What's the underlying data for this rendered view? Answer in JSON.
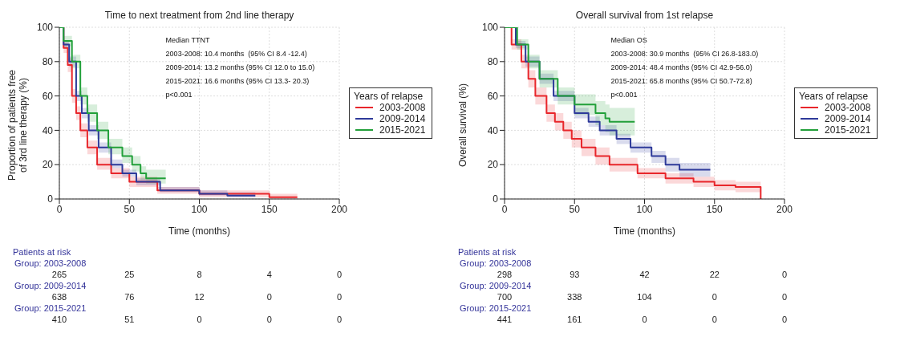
{
  "chart_data": [
    {
      "type": "step",
      "title": "Time to next treatment from 2nd line therapy",
      "xlabel": "Time (months)",
      "ylabel": "Proportion of patients free\nof 3rd line therapy (%)",
      "legend_title": "Years of relapse",
      "legend": "right",
      "grid": true,
      "xlim": [
        0,
        200
      ],
      "xticks": [
        0,
        50,
        100,
        150,
        200
      ],
      "ylim": [
        0,
        100
      ],
      "yticks": [
        0,
        20,
        40,
        60,
        80,
        100
      ],
      "series": [
        {
          "name": "2003-2008",
          "color": "#e8262b",
          "x": [
            0,
            3,
            6,
            9,
            12,
            15,
            20,
            27,
            37,
            50,
            70,
            100,
            150,
            170
          ],
          "values": [
            100,
            88,
            78,
            60,
            50,
            40,
            30,
            20,
            15,
            10,
            5,
            3,
            1,
            1
          ],
          "lower": [
            100,
            85,
            74,
            56,
            46,
            36,
            26,
            17,
            12,
            7,
            3,
            1,
            0,
            0
          ],
          "upper": [
            100,
            91,
            82,
            64,
            54,
            44,
            34,
            24,
            18,
            13,
            7,
            5,
            3,
            3
          ]
        },
        {
          "name": "2009-2014",
          "color": "#2e3a9a",
          "x": [
            0,
            3,
            7,
            12,
            16,
            21,
            28,
            37,
            45,
            55,
            72,
            100,
            120,
            140
          ],
          "values": [
            100,
            90,
            80,
            60,
            50,
            40,
            30,
            20,
            15,
            10,
            5,
            3,
            2,
            2
          ],
          "lower": [
            100,
            88,
            77,
            57,
            47,
            37,
            27,
            18,
            13,
            8,
            4,
            2,
            1,
            1
          ],
          "upper": [
            100,
            92,
            83,
            63,
            53,
            43,
            33,
            23,
            17,
            12,
            7,
            5,
            4,
            4
          ]
        },
        {
          "name": "2015-2021",
          "color": "#22a03a",
          "x": [
            0,
            3,
            9,
            15,
            20,
            27,
            35,
            45,
            52,
            58,
            62,
            76
          ],
          "values": [
            100,
            92,
            80,
            60,
            50,
            40,
            30,
            25,
            20,
            15,
            12,
            12
          ],
          "lower": [
            100,
            89,
            76,
            55,
            45,
            35,
            26,
            21,
            16,
            11,
            9,
            9
          ],
          "upper": [
            100,
            95,
            84,
            65,
            55,
            45,
            35,
            30,
            25,
            19,
            17,
            17
          ]
        }
      ],
      "annotations": [
        "Median TTNT",
        "2003-2008: 10.4 months  (95% CI 8.4 -12.4)",
        "2009-2014: 13.2 months (95% CI 12.0 to 15.0)",
        "2015-2021: 16.6 months (95% CI 13.3- 20.3)",
        "p<0.001",
        "Patients at risk",
        "Group: 2003-2008",
        "265",
        "25",
        "8",
        "4",
        "0",
        "Group: 2009-2014",
        "638",
        "76",
        "12",
        "0",
        "0",
        "Group: 2015-2021",
        "410",
        "51",
        "0",
        "0",
        "0"
      ]
    },
    {
      "type": "step",
      "title": "Overall survival from 1st relapse",
      "xlabel": "Time (months)",
      "ylabel": "Overall survival (%)",
      "legend_title": "Years of relapse",
      "legend": "right",
      "grid": true,
      "xlim": [
        0,
        200
      ],
      "xticks": [
        0,
        50,
        100,
        150,
        200
      ],
      "ylim": [
        0,
        100
      ],
      "yticks": [
        0,
        20,
        40,
        60,
        80,
        100
      ],
      "series": [
        {
          "name": "2003-2008",
          "color": "#e8262b",
          "x": [
            0,
            5,
            12,
            17,
            22,
            30,
            36,
            42,
            48,
            55,
            65,
            75,
            95,
            115,
            135,
            150,
            165,
            183
          ],
          "values": [
            100,
            90,
            80,
            70,
            60,
            50,
            45,
            40,
            35,
            30,
            25,
            20,
            15,
            12,
            10,
            8,
            7,
            0
          ],
          "lower": [
            100,
            87,
            76,
            65,
            55,
            45,
            40,
            35,
            30,
            25,
            20,
            16,
            12,
            9,
            7,
            5,
            4,
            4
          ],
          "upper": [
            100,
            93,
            84,
            75,
            65,
            55,
            50,
            45,
            40,
            35,
            30,
            24,
            18,
            15,
            13,
            11,
            10,
            10
          ]
        },
        {
          "name": "2009-2014",
          "color": "#2e3a9a",
          "x": [
            0,
            8,
            15,
            25,
            35,
            50,
            60,
            68,
            80,
            90,
            105,
            115,
            125,
            147
          ],
          "values": [
            100,
            90,
            80,
            70,
            60,
            50,
            45,
            40,
            35,
            30,
            25,
            20,
            17,
            17
          ],
          "lower": [
            100,
            88,
            77,
            67,
            57,
            47,
            42,
            37,
            32,
            27,
            21,
            16,
            13,
            13
          ],
          "upper": [
            100,
            92,
            83,
            73,
            63,
            53,
            48,
            43,
            38,
            33,
            28,
            24,
            21,
            21
          ]
        },
        {
          "name": "2015-2021",
          "color": "#22a03a",
          "x": [
            0,
            9,
            17,
            25,
            38,
            50,
            65,
            72,
            75,
            93
          ],
          "values": [
            100,
            90,
            80,
            70,
            60,
            55,
            50,
            47,
            45,
            45
          ],
          "lower": [
            100,
            87,
            76,
            65,
            55,
            49,
            43,
            39,
            37,
            37
          ],
          "upper": [
            100,
            93,
            84,
            75,
            65,
            61,
            57,
            55,
            53,
            53
          ]
        }
      ],
      "annotations": [
        "Median OS",
        "2003-2008: 30.9 months  (95% CI 26.8-183.0)",
        "2009-2014: 48.4 months (95% CI 42.9-56.0)",
        "2015-2021: 65.8 months (95% CI 50.7-72.8)",
        "p<0.001",
        "Patients at risk",
        "Group: 2003-2008",
        "298",
        "93",
        "42",
        "22",
        "0",
        "Group: 2009-2014",
        "700",
        "338",
        "104",
        "0",
        "0",
        "Group: 2015-2021",
        "441",
        "161",
        "0",
        "0",
        "0"
      ]
    }
  ]
}
